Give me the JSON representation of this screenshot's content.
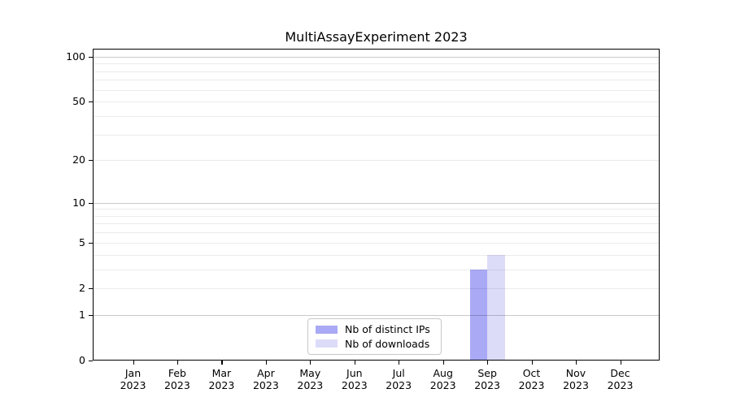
{
  "chart_data": {
    "type": "bar",
    "title": "MultiAssayExperiment 2023",
    "year_label": "2023",
    "categories": [
      "Jan",
      "Feb",
      "Mar",
      "Apr",
      "May",
      "Jun",
      "Jul",
      "Aug",
      "Sep",
      "Oct",
      "Nov",
      "Dec"
    ],
    "series": [
      {
        "name": "Nb of distinct IPs",
        "color": "#a9a9f5",
        "values": [
          0,
          0,
          0,
          0,
          0,
          0,
          0,
          0,
          3,
          0,
          0,
          0
        ]
      },
      {
        "name": "Nb of downloads",
        "color": "#dcdcf9",
        "values": [
          0,
          0,
          0,
          0,
          0,
          0,
          0,
          0,
          4,
          0,
          0,
          0
        ]
      }
    ],
    "y_scale": "log1p",
    "ylim": [
      0,
      113
    ],
    "y_ticks": [
      0,
      1,
      2,
      5,
      10,
      20,
      50,
      100
    ],
    "minor_gridlines": [
      2,
      3,
      4,
      5,
      6,
      7,
      8,
      9,
      20,
      30,
      40,
      50,
      60,
      70,
      80,
      90
    ],
    "major_gridlines": [
      1,
      10,
      100
    ],
    "grid": true,
    "legend_position": "bottom-center",
    "colors": {
      "minor_grid": "rgba(0,0,0,0.08)",
      "major_grid": "rgba(0,0,0,0.21)",
      "axis": "#000000",
      "background": "#ffffff"
    }
  }
}
